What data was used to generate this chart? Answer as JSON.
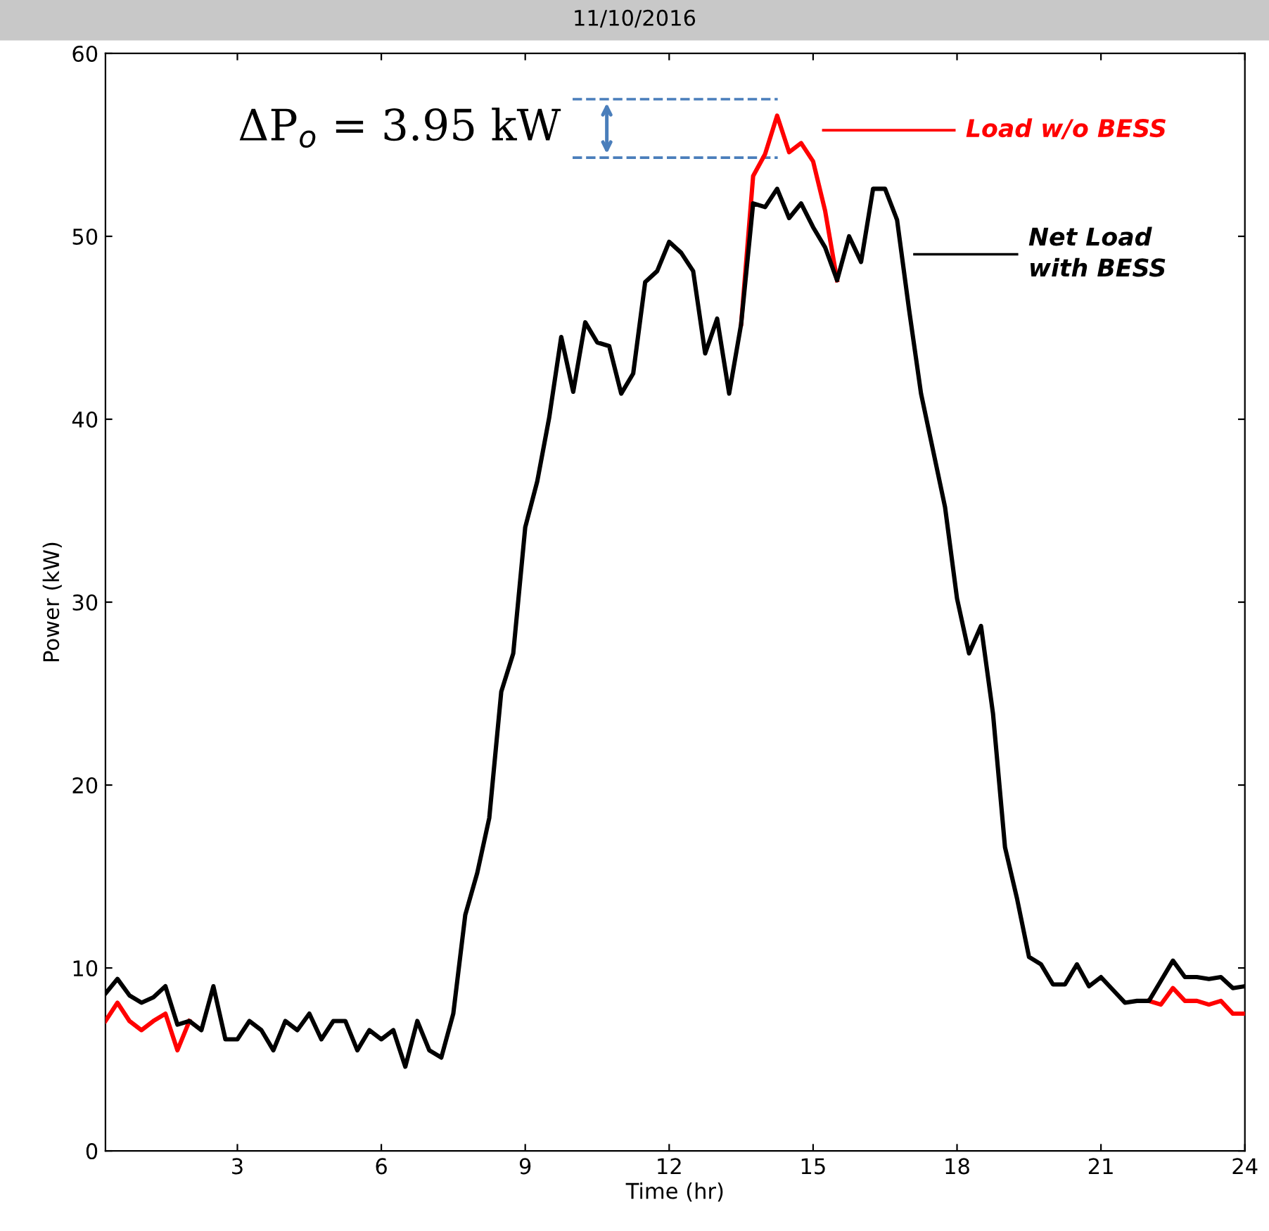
{
  "chart_data": {
    "type": "line",
    "title": "11/10/2016",
    "xlabel": "Time (hr)",
    "ylabel": "Power (kW)",
    "xlim": [
      0.25,
      24
    ],
    "xticks": [
      3,
      6,
      9,
      12,
      15,
      18,
      21,
      24
    ],
    "ylim": [
      0,
      60
    ],
    "yticks": [
      0,
      10,
      20,
      30,
      40,
      50,
      60
    ],
    "grid": false,
    "marker": "none",
    "line_style": "solid",
    "x": [
      0.25,
      0.5,
      0.75,
      1.0,
      1.25,
      1.5,
      1.75,
      2.0,
      2.25,
      2.5,
      2.75,
      3.0,
      3.25,
      3.5,
      3.75,
      4.0,
      4.25,
      4.5,
      4.75,
      5.0,
      5.25,
      5.5,
      5.75,
      6.0,
      6.25,
      6.5,
      6.75,
      7.0,
      7.25,
      7.5,
      7.75,
      8.0,
      8.25,
      8.5,
      8.75,
      9.0,
      9.25,
      9.5,
      9.75,
      10.0,
      10.25,
      10.5,
      10.75,
      11.0,
      11.25,
      11.5,
      11.75,
      12.0,
      12.25,
      12.5,
      12.75,
      13.0,
      13.25,
      13.5,
      13.75,
      14.0,
      14.25,
      14.5,
      14.75,
      15.0,
      15.25,
      15.5,
      15.75,
      16.0,
      16.25,
      16.5,
      16.75,
      17.0,
      17.25,
      17.5,
      17.75,
      18.0,
      18.25,
      18.5,
      18.75,
      19.0,
      19.25,
      19.5,
      19.75,
      20.0,
      20.25,
      20.5,
      20.75,
      21.0,
      21.25,
      21.5,
      21.75,
      22.0,
      22.25,
      22.5,
      22.75,
      23.0,
      23.25,
      23.5,
      23.75,
      24.0
    ],
    "series": [
      {
        "name": "Load w/o BESS",
        "color": "#ff0000",
        "values": [
          7.1,
          8.1,
          7.1,
          6.6,
          7.1,
          7.5,
          5.5,
          7.1,
          null,
          null,
          null,
          null,
          null,
          null,
          null,
          null,
          null,
          null,
          null,
          null,
          null,
          null,
          null,
          null,
          null,
          null,
          null,
          null,
          null,
          null,
          null,
          null,
          null,
          null,
          null,
          null,
          null,
          null,
          null,
          null,
          null,
          null,
          null,
          null,
          null,
          null,
          null,
          null,
          null,
          null,
          null,
          null,
          null,
          45.2,
          53.3,
          54.5,
          56.6,
          54.6,
          55.1,
          54.1,
          51.4,
          47.6,
          null,
          null,
          null,
          null,
          null,
          null,
          null,
          null,
          null,
          null,
          null,
          null,
          null,
          null,
          null,
          null,
          null,
          null,
          null,
          null,
          null,
          null,
          null,
          null,
          null,
          8.2,
          8.0,
          8.9,
          8.2,
          8.2,
          8.0,
          8.2,
          7.5,
          7.5
        ]
      },
      {
        "name": "Net Load\nwith BESS",
        "color": "#000000",
        "values": [
          8.6,
          9.4,
          8.5,
          8.1,
          8.4,
          9.0,
          6.9,
          7.1,
          6.6,
          9.0,
          6.1,
          6.1,
          7.1,
          6.6,
          5.5,
          7.1,
          6.6,
          7.5,
          6.1,
          7.1,
          7.1,
          5.5,
          6.6,
          6.1,
          6.6,
          4.6,
          7.1,
          5.5,
          5.1,
          7.5,
          12.9,
          15.2,
          18.2,
          25.1,
          27.2,
          34.1,
          36.6,
          40.1,
          44.5,
          41.5,
          45.3,
          44.2,
          44.0,
          41.4,
          42.5,
          47.5,
          48.1,
          49.7,
          49.1,
          48.1,
          43.6,
          45.5,
          41.4,
          45.2,
          51.8,
          51.6,
          52.6,
          51.0,
          51.8,
          50.5,
          49.4,
          47.6,
          50.0,
          48.6,
          52.6,
          52.6,
          50.9,
          46.0,
          41.4,
          38.3,
          35.2,
          30.2,
          27.2,
          28.7,
          23.9,
          16.6,
          13.8,
          10.6,
          10.2,
          9.1,
          9.1,
          10.2,
          9.0,
          9.5,
          8.8,
          8.1,
          8.2,
          8.2,
          9.3,
          10.4,
          9.5,
          9.5,
          9.4,
          9.5,
          8.9,
          9.0
        ]
      }
    ],
    "legend": "top right",
    "annotations": [
      "ΔP$_{o}$ = 3.95 kW"
    ],
    "ref_lines": [
      {
        "axis": "y",
        "value": 57.5,
        "color": "#4a7ebb",
        "line_style": "dashed"
      },
      {
        "axis": "y",
        "value": 54.3,
        "color": "#4a7ebb",
        "line_style": "dashed"
      }
    ]
  }
}
